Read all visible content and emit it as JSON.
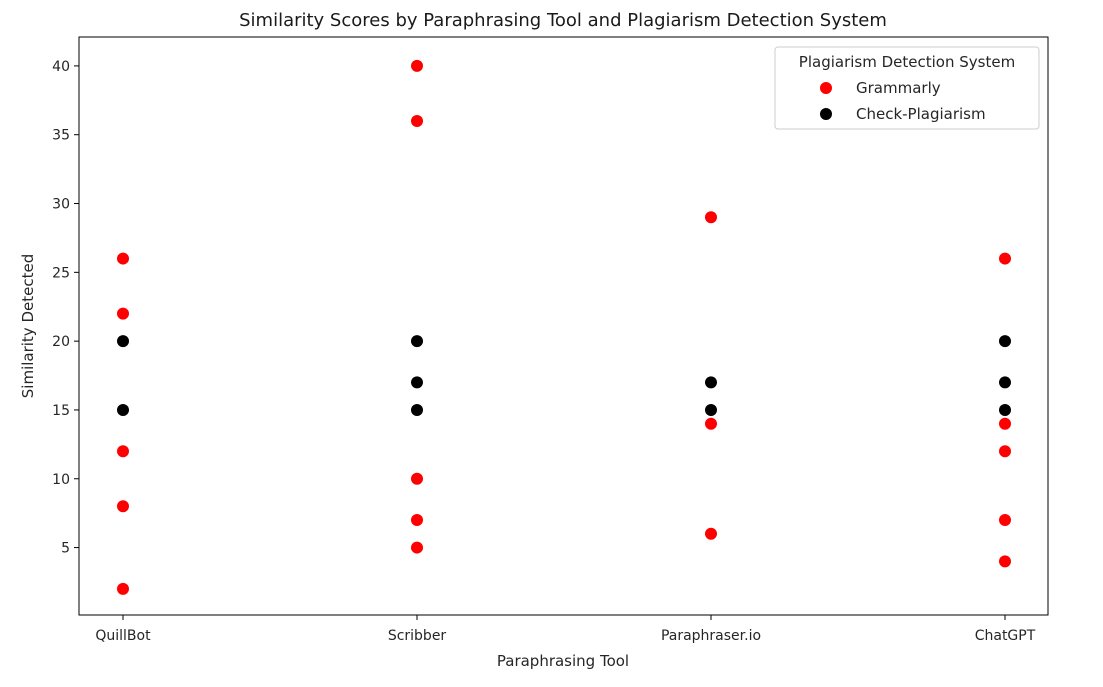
{
  "chart_data": {
    "type": "scatter",
    "title": "Similarity Scores by Paraphrasing Tool and Plagiarism Detection System",
    "xlabel": "Paraphrasing Tool",
    "ylabel": "Similarity Detected",
    "categories": [
      "QuillBot",
      "Scribber",
      "Paraphraser.io",
      "ChatGPT"
    ],
    "ylim": [
      0.1,
      42.1
    ],
    "yticks": [
      5,
      10,
      15,
      20,
      25,
      30,
      35,
      40
    ],
    "grid": false,
    "legend": {
      "title": "Plagiarism Detection System",
      "placement": "top-right"
    },
    "series": [
      {
        "name": "Grammarly",
        "color": "#ff0000",
        "points": [
          {
            "x": "QuillBot",
            "y": 26
          },
          {
            "x": "QuillBot",
            "y": 22
          },
          {
            "x": "QuillBot",
            "y": 12
          },
          {
            "x": "QuillBot",
            "y": 8
          },
          {
            "x": "QuillBot",
            "y": 2
          },
          {
            "x": "Scribber",
            "y": 40
          },
          {
            "x": "Scribber",
            "y": 36
          },
          {
            "x": "Scribber",
            "y": 10
          },
          {
            "x": "Scribber",
            "y": 7
          },
          {
            "x": "Scribber",
            "y": 5
          },
          {
            "x": "Paraphraser.io",
            "y": 29
          },
          {
            "x": "Paraphraser.io",
            "y": 14
          },
          {
            "x": "Paraphraser.io",
            "y": 6
          },
          {
            "x": "ChatGPT",
            "y": 26
          },
          {
            "x": "ChatGPT",
            "y": 14
          },
          {
            "x": "ChatGPT",
            "y": 12
          },
          {
            "x": "ChatGPT",
            "y": 7
          },
          {
            "x": "ChatGPT",
            "y": 4
          }
        ]
      },
      {
        "name": "Check-Plagiarism",
        "color": "#000000",
        "points": [
          {
            "x": "QuillBot",
            "y": 20
          },
          {
            "x": "QuillBot",
            "y": 15
          },
          {
            "x": "Scribber",
            "y": 20
          },
          {
            "x": "Scribber",
            "y": 17
          },
          {
            "x": "Scribber",
            "y": 15
          },
          {
            "x": "Paraphraser.io",
            "y": 17
          },
          {
            "x": "Paraphraser.io",
            "y": 15
          },
          {
            "x": "ChatGPT",
            "y": 20
          },
          {
            "x": "ChatGPT",
            "y": 17
          },
          {
            "x": "ChatGPT",
            "y": 15
          }
        ]
      }
    ]
  }
}
